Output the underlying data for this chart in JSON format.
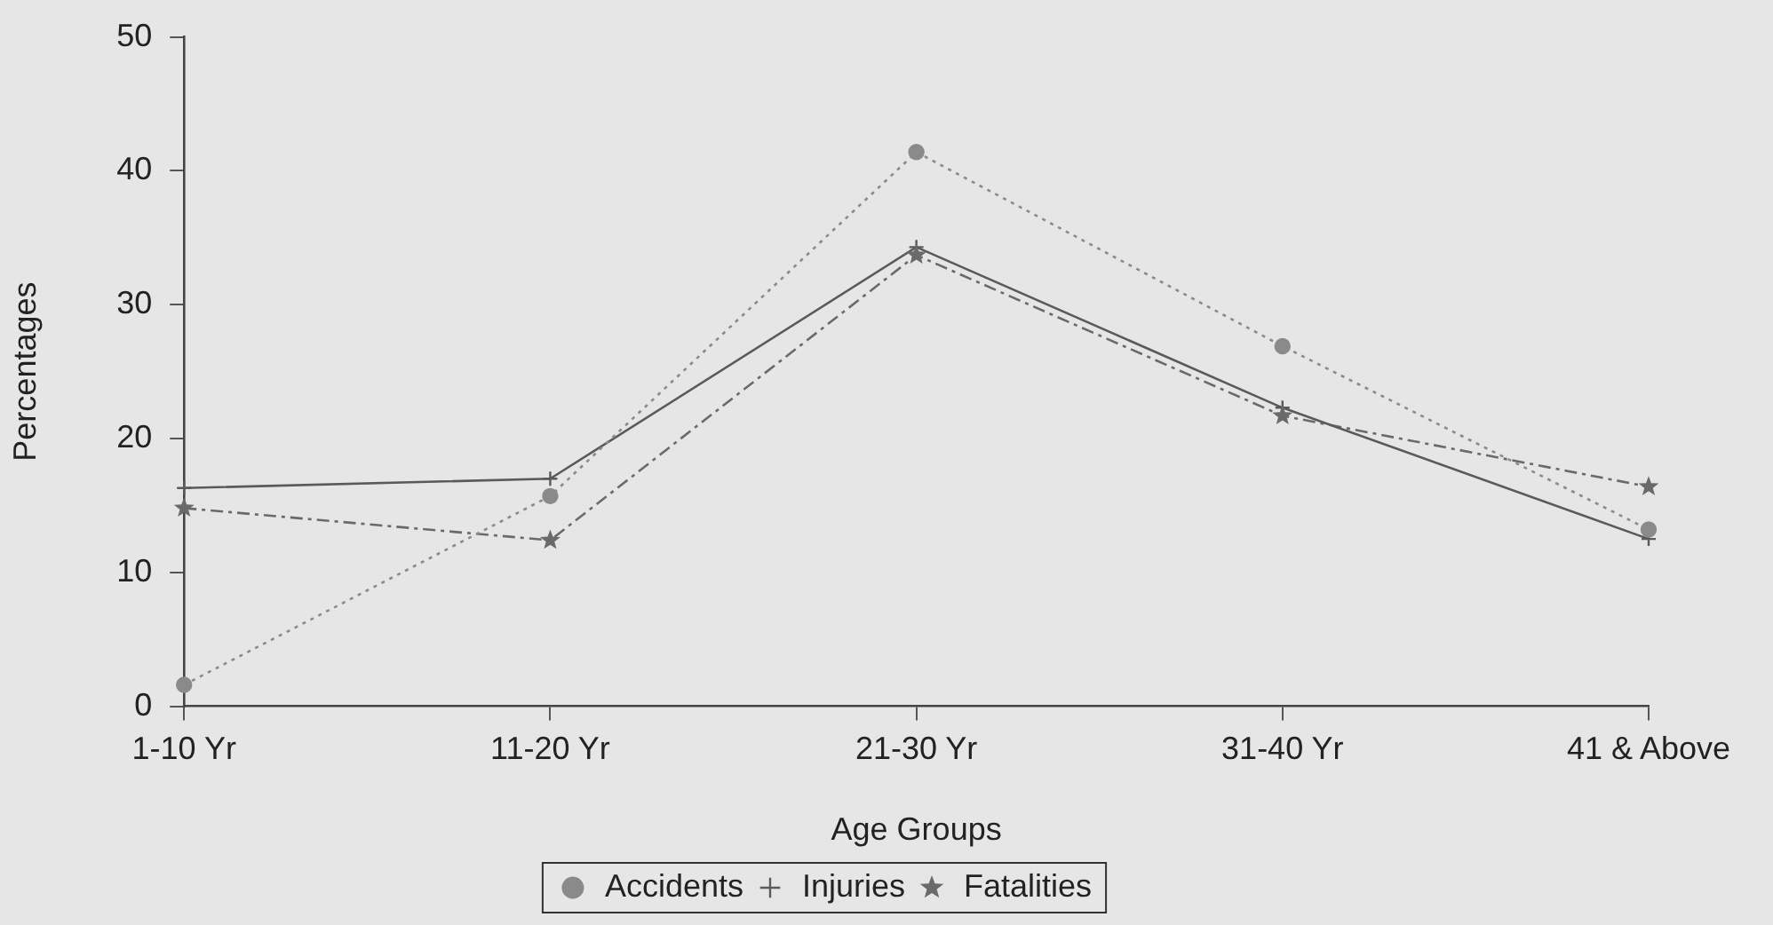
{
  "chart_data": {
    "type": "line",
    "xlabel": "Age Groups",
    "ylabel": "Percentages",
    "categories": [
      "1-10 Yr",
      "11-20 Yr",
      "21-30 Yr",
      "31-40 Yr",
      "41 & Above"
    ],
    "ylim": [
      0,
      50
    ],
    "yticks": [
      0,
      10,
      20,
      30,
      40,
      50
    ],
    "grid": false,
    "legend": "bottom",
    "series": [
      {
        "name": "Accidents",
        "color": "#8a8a8a",
        "marker": "circle",
        "line_style": "dotted",
        "values": [
          1.6,
          15.7,
          41.4,
          26.9,
          13.2
        ]
      },
      {
        "name": "Injuries",
        "color": "#5a5a5a",
        "marker": "cross",
        "line_style": "solid",
        "values": [
          16.3,
          17.0,
          34.3,
          22.3,
          12.5
        ]
      },
      {
        "name": "Fatalities",
        "color": "#6a6a6a",
        "marker": "star",
        "line_style": "dashed",
        "values": [
          14.8,
          12.4,
          33.7,
          21.7,
          16.4
        ]
      }
    ]
  }
}
